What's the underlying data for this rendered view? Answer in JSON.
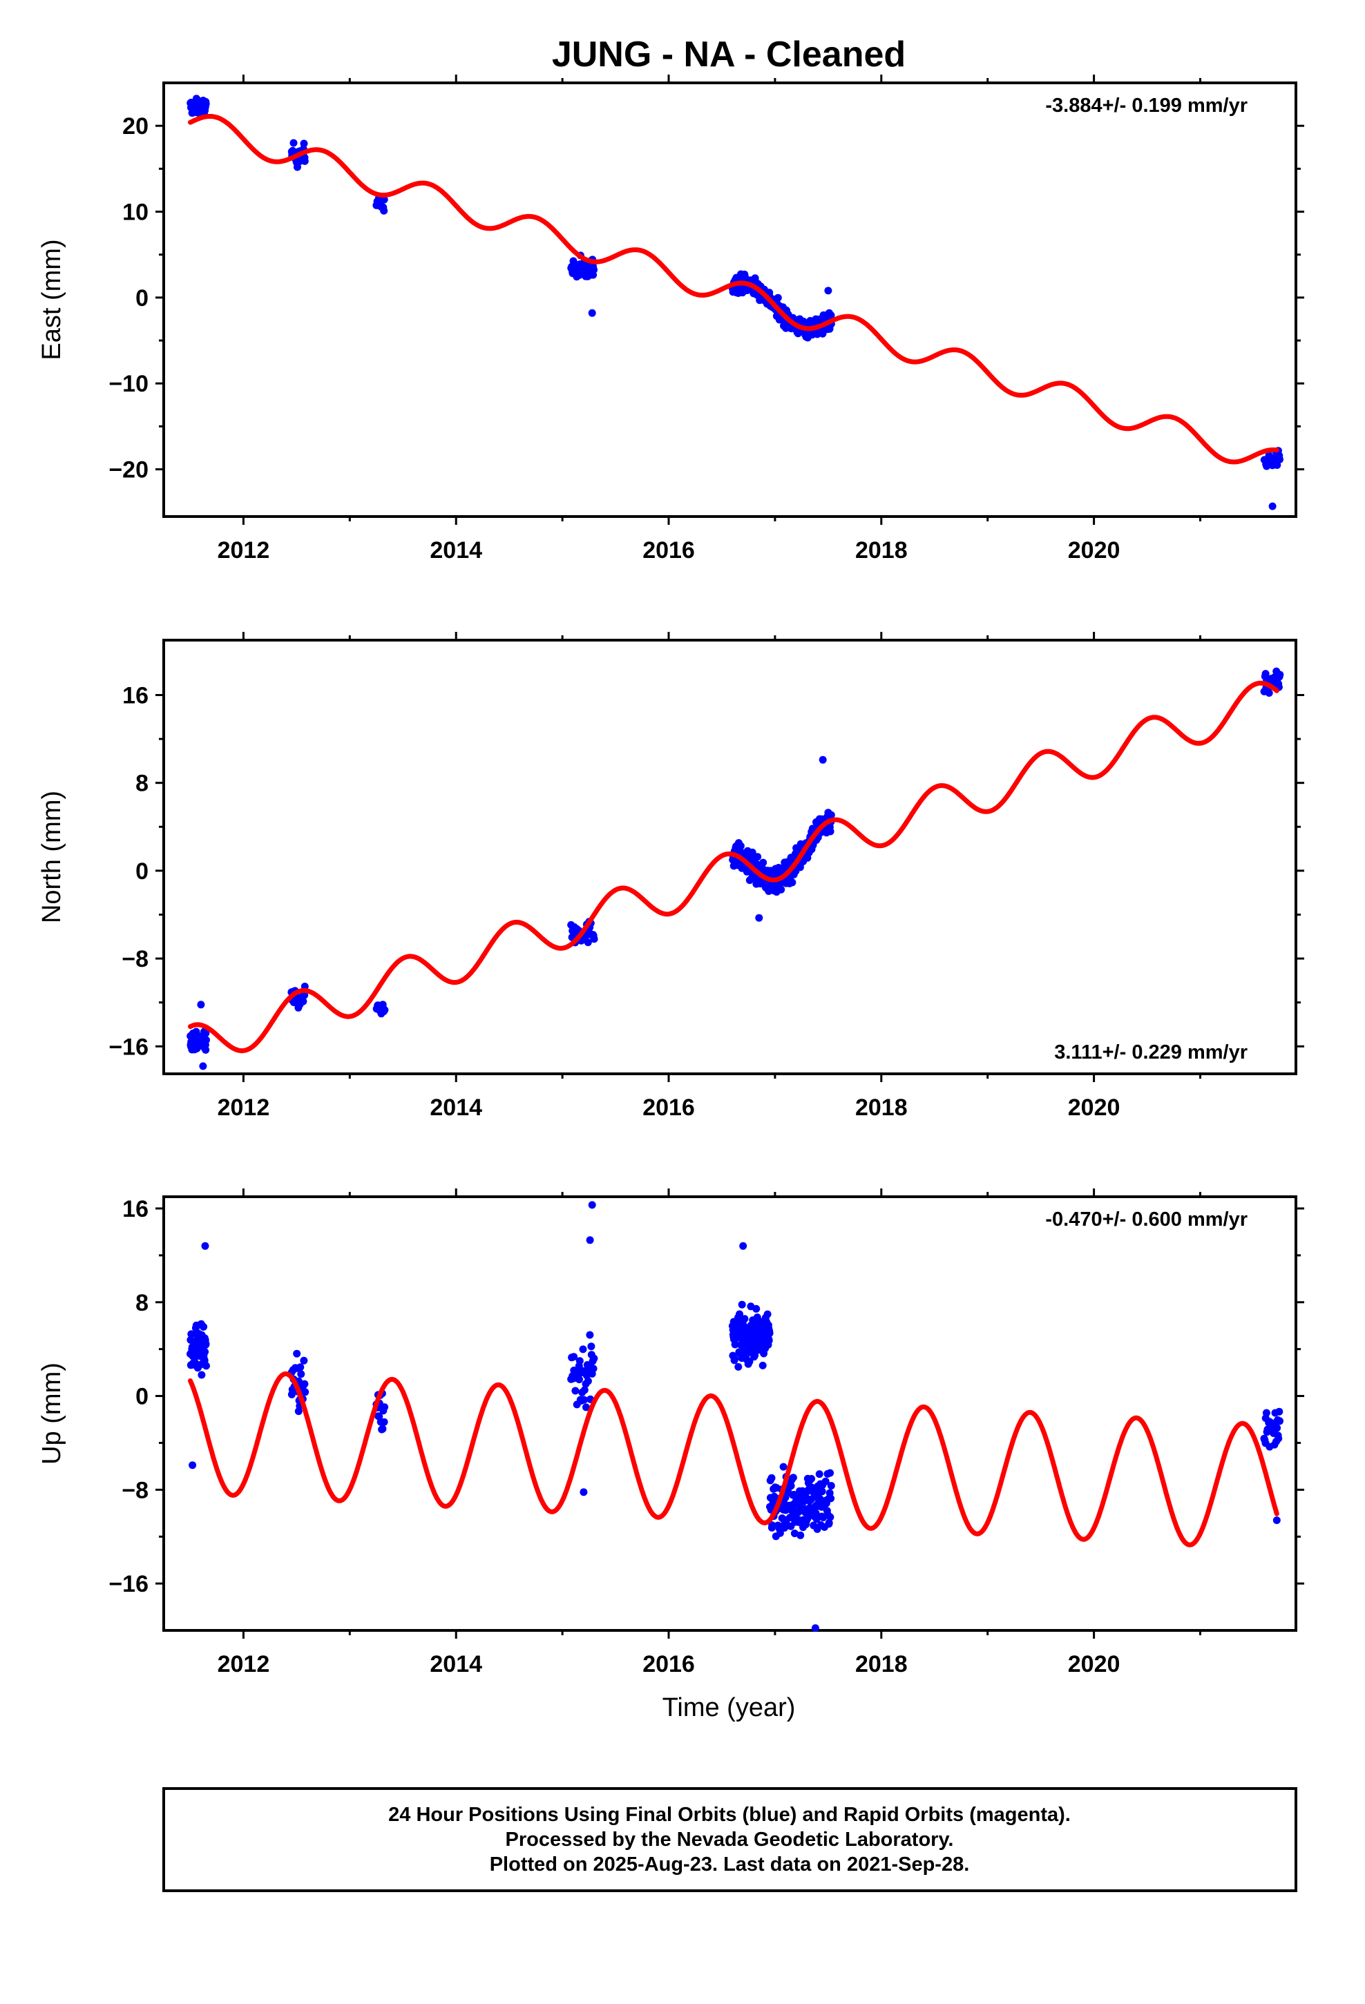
{
  "title": "JUNG  - NA - Cleaned",
  "x_axis_label": "Time (year)",
  "footer": {
    "line1": "24 Hour Positions Using Final Orbits (blue) and Rapid Orbits (magenta).",
    "line2": "Processed by the Nevada Geodetic Laboratory.",
    "line3": "Plotted on 2025-Aug-23. Last data on 2021-Sep-28."
  },
  "colors": {
    "data": "#0000ff",
    "model": "#ff0000",
    "axes": "#000000"
  },
  "chart_data": [
    {
      "type": "scatter",
      "panel": "east",
      "ylabel": "East (mm)",
      "xlim": [
        2011.25,
        2021.9
      ],
      "ylim": [
        -25.5,
        25
      ],
      "xticks": [
        2012,
        2014,
        2016,
        2018,
        2020
      ],
      "yticks": [
        20,
        10,
        0,
        -10,
        -20
      ],
      "ytick_labels": [
        "20",
        "10",
        "0",
        "−10",
        "−20"
      ],
      "rate_text": "-3.884+/- 0.199 mm/yr",
      "rate_position": "top-right",
      "model": {
        "name": "",
        "offset": 20.4,
        "t0": 2011.5,
        "rate": -3.884,
        "amp": 1.55,
        "phase": 0.0,
        "ramp_end": 2011.6
      },
      "clusters": [
        {
          "t0": 2011.5,
          "t1": 2011.65,
          "n": 60,
          "center": 22.2,
          "spread": 1.1
        },
        {
          "t0": 2012.45,
          "t1": 2012.58,
          "n": 30,
          "center": 16.6,
          "spread": 1.6
        },
        {
          "t0": 2013.25,
          "t1": 2013.33,
          "n": 12,
          "center": 10.9,
          "spread": 1.0
        },
        {
          "t0": 2015.08,
          "t1": 2015.3,
          "n": 40,
          "center": 3.2,
          "spread": 1.9
        },
        {
          "t0": 2016.6,
          "t1": 2017.53,
          "n": 320,
          "center": "model",
          "spread": 1.3
        },
        {
          "t0": 2021.6,
          "t1": 2021.75,
          "n": 30,
          "center": -19.0,
          "spread": 1.3
        }
      ],
      "outliers": [
        [
          2021.68,
          -24.3
        ],
        [
          2017.5,
          0.8
        ],
        [
          2015.28,
          -1.8
        ]
      ]
    },
    {
      "type": "scatter",
      "panel": "north",
      "ylabel": "North (mm)",
      "xlim": [
        2011.25,
        2021.9
      ],
      "ylim": [
        -18.5,
        21
      ],
      "xticks": [
        2012,
        2014,
        2016,
        2018,
        2020
      ],
      "yticks": [
        16,
        8,
        0,
        -8,
        -16
      ],
      "ytick_labels": [
        "16",
        "8",
        "0",
        "−8",
        "−16"
      ],
      "rate_text": "3.111+/- 0.229 mm/yr",
      "rate_position": "bottom-right",
      "model": {
        "name": "",
        "offset": -14.2,
        "t0": 2011.5,
        "rate": 3.111,
        "amp": 1.9,
        "phase": 1.4,
        "ramp_end": 2011.6
      },
      "clusters": [
        {
          "t0": 2011.5,
          "t1": 2011.65,
          "n": 60,
          "center": -15.7,
          "spread": 1.1
        },
        {
          "t0": 2012.45,
          "t1": 2012.58,
          "n": 28,
          "center": -11.6,
          "spread": 1.1
        },
        {
          "t0": 2013.25,
          "t1": 2013.33,
          "n": 12,
          "center": -12.3,
          "spread": 1.2
        },
        {
          "t0": 2015.08,
          "t1": 2015.3,
          "n": 40,
          "center": -5.6,
          "spread": 1.3
        },
        {
          "t0": 2016.6,
          "t1": 2017.53,
          "n": 320,
          "center": "model",
          "spread": 1.5
        },
        {
          "t0": 2021.6,
          "t1": 2021.75,
          "n": 30,
          "center": 17.2,
          "spread": 1.3
        }
      ],
      "outliers": [
        [
          2011.62,
          -17.8
        ],
        [
          2011.6,
          -12.2
        ],
        [
          2016.85,
          -4.3
        ],
        [
          2017.45,
          10.1
        ]
      ]
    },
    {
      "type": "scatter",
      "panel": "up",
      "ylabel": "Up (mm)",
      "xlabel": "Time (year)",
      "xlim": [
        2011.25,
        2021.9
      ],
      "ylim": [
        -20,
        17
      ],
      "xticks": [
        2012,
        2014,
        2016,
        2018,
        2020
      ],
      "yticks": [
        16,
        8,
        0,
        -8,
        -16
      ],
      "ytick_labels": [
        "16",
        "8",
        "0",
        "−8",
        "−16"
      ],
      "rate_text": "-0.470+/- 0.600 mm/yr",
      "rate_position": "top-right",
      "model": {
        "name": "",
        "offset": 1.3,
        "t0": 2011.5,
        "rate": -0.47,
        "amp": 5.3,
        "phase": 2.2,
        "ramp_end": 2011.6
      },
      "clusters": [
        {
          "t0": 2011.5,
          "t1": 2011.65,
          "n": 60,
          "center": 4.2,
          "spread": 3.0
        },
        {
          "t0": 2012.45,
          "t1": 2012.58,
          "n": 30,
          "center": 1.0,
          "spread": 3.0
        },
        {
          "t0": 2013.25,
          "t1": 2013.33,
          "n": 14,
          "center": -1.5,
          "spread": 3.3
        },
        {
          "t0": 2015.08,
          "t1": 2015.3,
          "n": 40,
          "center": 2.0,
          "spread": 4.0
        },
        {
          "t0": 2016.6,
          "t1": 2016.95,
          "n": 160,
          "center": 5.0,
          "spread": 2.5
        },
        {
          "t0": 2016.95,
          "t1": 2017.53,
          "n": 160,
          "center": -9.0,
          "spread": 3.2
        },
        {
          "t0": 2021.6,
          "t1": 2021.75,
          "n": 30,
          "center": -3.0,
          "spread": 3.0
        }
      ],
      "outliers": [
        [
          2015.28,
          16.3
        ],
        [
          2015.26,
          13.3
        ],
        [
          2011.64,
          12.8
        ],
        [
          2016.7,
          12.8
        ],
        [
          2017.38,
          -19.8
        ],
        [
          2011.52,
          -5.9
        ],
        [
          2015.2,
          -8.2
        ],
        [
          2021.72,
          -10.6
        ]
      ]
    }
  ]
}
